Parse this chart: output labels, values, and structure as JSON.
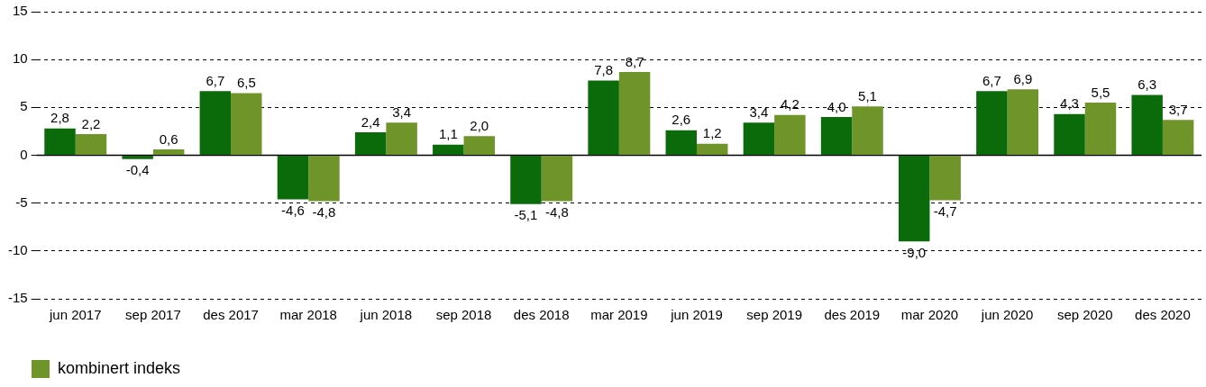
{
  "chart_data": {
    "type": "bar",
    "categories": [
      "jun 2017",
      "sep 2017",
      "des 2017",
      "mar 2018",
      "jun 2018",
      "sep 2018",
      "des 2018",
      "mar 2019",
      "jun 2019",
      "sep 2019",
      "des 2019",
      "mar 2020",
      "jun 2020",
      "sep 2020",
      "des 2020"
    ],
    "series": [
      {
        "color": "#0b6b0b",
        "values": [
          2.8,
          -0.4,
          6.7,
          -4.6,
          2.4,
          1.1,
          -5.1,
          7.8,
          2.6,
          3.4,
          4.0,
          -9.0,
          6.7,
          4.3,
          6.3
        ],
        "value_labels": [
          "2,8",
          "-0,4",
          "6,7",
          "-4,6",
          "2,4",
          "1,1",
          "-5,1",
          "7,8",
          "2,6",
          "3,4",
          "4,0",
          "-9,0",
          "6,7",
          "4,3",
          "6,3"
        ]
      },
      {
        "name": "kombinert indeks",
        "color": "#6e942a",
        "values": [
          2.2,
          0.6,
          6.5,
          -4.8,
          3.4,
          2.0,
          -4.8,
          8.7,
          1.2,
          4.2,
          5.1,
          -4.7,
          6.9,
          5.5,
          3.7
        ],
        "value_labels": [
          "2,2",
          "0,6",
          "6,5",
          "-4,8",
          "3,4",
          "2,0",
          "-4,8",
          "8,7",
          "1,2",
          "4,2",
          "5,1",
          "-4,7",
          "6,9",
          "5,5",
          "3,7"
        ]
      }
    ],
    "ylim": [
      -15,
      15
    ],
    "yticks": [
      -15,
      -10,
      -5,
      0,
      5,
      10,
      15
    ],
    "grid": "y",
    "line_style": "dashed",
    "legend": "bottom"
  }
}
